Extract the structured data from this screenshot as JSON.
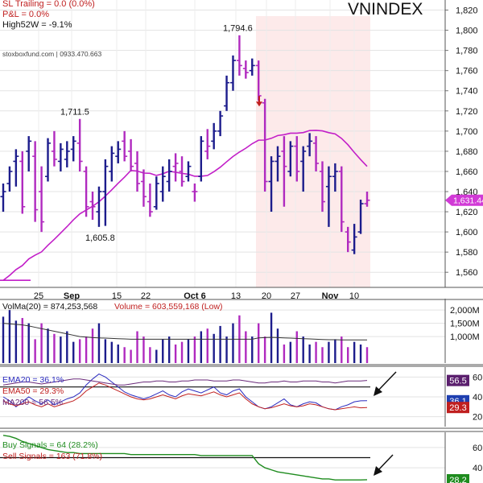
{
  "chart_data": [
    {
      "type": "ohlc",
      "title": "VNINDEX",
      "header_lines": [
        "SL Trailing = 0.0 (0.0%)",
        "P&L = 0.0%",
        "High52W = -9.1%"
      ],
      "watermark": "stoxboxfund.com | 0933.470.663",
      "x_tick_labels": [
        "25",
        "Sep",
        "15",
        "22",
        "Oct 6",
        "13",
        "20",
        "27",
        "Nov",
        "10"
      ],
      "y_ticks": [
        1560,
        1580,
        1600,
        1620,
        1640,
        1660,
        1680,
        1700,
        1720,
        1740,
        1760,
        1780,
        1800,
        1820
      ],
      "ylim": [
        1545,
        1830
      ],
      "last_price_label": "1,631.44",
      "last_price": 1631.44,
      "annotations": [
        {
          "text": "1,794.6",
          "value": 1794.6
        },
        {
          "text": "1,711.5",
          "value": 1711.5
        },
        {
          "text": "1,605.8",
          "value": 1605.8
        }
      ],
      "sell_arrow_value": 1730,
      "highlight": {
        "from_index": 50,
        "to_index": 72
      },
      "bars": [
        {
          "open": 1635,
          "high": 1648,
          "low": 1620,
          "close": 1640,
          "color": "#1c1c8c"
        },
        {
          "open": 1648,
          "high": 1665,
          "low": 1640,
          "close": 1660,
          "color": "#1c1c8c"
        },
        {
          "open": 1670,
          "high": 1682,
          "low": 1645,
          "close": 1675,
          "color": "#1c1c8c"
        },
        {
          "open": 1670,
          "high": 1680,
          "low": 1618,
          "close": 1625,
          "color": "#b02abf"
        },
        {
          "open": 1680,
          "high": 1695,
          "low": 1660,
          "close": 1690,
          "color": "#1c1c8c"
        },
        {
          "open": 1675,
          "high": 1690,
          "low": 1610,
          "close": 1622,
          "color": "#b02abf"
        },
        {
          "open": 1640,
          "high": 1665,
          "low": 1600,
          "close": 1610,
          "color": "#b02abf"
        },
        {
          "open": 1655,
          "high": 1693,
          "low": 1650,
          "close": 1688,
          "color": "#1c1c8c"
        },
        {
          "open": 1680,
          "high": 1700,
          "low": 1665,
          "close": 1672,
          "color": "#b02abf"
        },
        {
          "open": 1670,
          "high": 1688,
          "low": 1660,
          "close": 1682,
          "color": "#1c1c8c"
        },
        {
          "open": 1672,
          "high": 1690,
          "low": 1664,
          "close": 1680,
          "color": "#1c1c8c"
        },
        {
          "open": 1682,
          "high": 1695,
          "low": 1670,
          "close": 1690,
          "color": "#1c1c8c"
        },
        {
          "open": 1688,
          "high": 1712,
          "low": 1660,
          "close": 1670,
          "color": "#b02abf"
        },
        {
          "open": 1660,
          "high": 1665,
          "low": 1615,
          "close": 1625,
          "color": "#b02abf"
        },
        {
          "open": 1630,
          "high": 1640,
          "low": 1612,
          "close": 1625,
          "color": "#b02abf"
        },
        {
          "open": 1620,
          "high": 1645,
          "low": 1605,
          "close": 1640,
          "color": "#1c1c8c"
        },
        {
          "open": 1640,
          "high": 1672,
          "low": 1606,
          "close": 1665,
          "color": "#1c1c8c"
        },
        {
          "open": 1660,
          "high": 1685,
          "low": 1650,
          "close": 1678,
          "color": "#1c1c8c"
        },
        {
          "open": 1675,
          "high": 1690,
          "low": 1668,
          "close": 1682,
          "color": "#1c1c8c"
        },
        {
          "open": 1690,
          "high": 1700,
          "low": 1670,
          "close": 1675,
          "color": "#b02abf"
        },
        {
          "open": 1680,
          "high": 1692,
          "low": 1660,
          "close": 1665,
          "color": "#b02abf"
        },
        {
          "open": 1668,
          "high": 1680,
          "low": 1640,
          "close": 1648,
          "color": "#b02abf"
        },
        {
          "open": 1650,
          "high": 1662,
          "low": 1625,
          "close": 1635,
          "color": "#b02abf"
        },
        {
          "open": 1630,
          "high": 1648,
          "low": 1615,
          "close": 1620,
          "color": "#b02abf"
        },
        {
          "open": 1625,
          "high": 1655,
          "low": 1622,
          "close": 1648,
          "color": "#1c1c8c"
        },
        {
          "open": 1640,
          "high": 1665,
          "low": 1630,
          "close": 1655,
          "color": "#1c1c8c"
        },
        {
          "open": 1650,
          "high": 1672,
          "low": 1640,
          "close": 1660,
          "color": "#1c1c8c"
        },
        {
          "open": 1665,
          "high": 1678,
          "low": 1650,
          "close": 1668,
          "color": "#b02abf"
        },
        {
          "open": 1660,
          "high": 1675,
          "low": 1645,
          "close": 1650,
          "color": "#b02abf"
        },
        {
          "open": 1655,
          "high": 1670,
          "low": 1650,
          "close": 1665,
          "color": "#1c1c8c"
        },
        {
          "open": 1640,
          "high": 1648,
          "low": 1630,
          "close": 1640,
          "color": "#b02abf"
        },
        {
          "open": 1655,
          "high": 1695,
          "low": 1650,
          "close": 1690,
          "color": "#1c1c8c"
        },
        {
          "open": 1680,
          "high": 1702,
          "low": 1672,
          "close": 1685,
          "color": "#b02abf"
        },
        {
          "open": 1690,
          "high": 1708,
          "low": 1682,
          "close": 1700,
          "color": "#1c1c8c"
        },
        {
          "open": 1700,
          "high": 1720,
          "low": 1695,
          "close": 1715,
          "color": "#1c1c8c"
        },
        {
          "open": 1725,
          "high": 1755,
          "low": 1720,
          "close": 1748,
          "color": "#1c1c8c"
        },
        {
          "open": 1748,
          "high": 1775,
          "low": 1740,
          "close": 1770,
          "color": "#1c1c8c"
        },
        {
          "open": 1770,
          "high": 1795,
          "low": 1755,
          "close": 1765,
          "color": "#b02abf"
        },
        {
          "open": 1762,
          "high": 1770,
          "low": 1752,
          "close": 1758,
          "color": "#b02abf"
        },
        {
          "open": 1760,
          "high": 1772,
          "low": 1755,
          "close": 1765,
          "color": "#1c1c8c"
        },
        {
          "open": 1765,
          "high": 1770,
          "low": 1730,
          "close": 1735,
          "color": "#b02abf"
        },
        {
          "open": 1728,
          "high": 1732,
          "low": 1640,
          "close": 1650,
          "color": "#b02abf"
        },
        {
          "open": 1650,
          "high": 1675,
          "low": 1620,
          "close": 1670,
          "color": "#1c1c8c"
        },
        {
          "open": 1670,
          "high": 1685,
          "low": 1650,
          "close": 1675,
          "color": "#1c1c8c"
        },
        {
          "open": 1680,
          "high": 1695,
          "low": 1625,
          "close": 1665,
          "color": "#b02abf"
        },
        {
          "open": 1660,
          "high": 1690,
          "low": 1655,
          "close": 1685,
          "color": "#1c1c8c"
        },
        {
          "open": 1685,
          "high": 1695,
          "low": 1650,
          "close": 1660,
          "color": "#b02abf"
        },
        {
          "open": 1670,
          "high": 1685,
          "low": 1640,
          "close": 1680,
          "color": "#1c1c8c"
        },
        {
          "open": 1685,
          "high": 1698,
          "low": 1675,
          "close": 1690,
          "color": "#1c1c8c"
        },
        {
          "open": 1688,
          "high": 1695,
          "low": 1660,
          "close": 1668,
          "color": "#b02abf"
        },
        {
          "open": 1660,
          "high": 1670,
          "low": 1620,
          "close": 1630,
          "color": "#b02abf"
        },
        {
          "open": 1645,
          "high": 1665,
          "low": 1605,
          "close": 1655,
          "color": "#1c1c8c"
        },
        {
          "open": 1655,
          "high": 1668,
          "low": 1640,
          "close": 1660,
          "color": "#1c1c8c"
        },
        {
          "open": 1660,
          "high": 1665,
          "low": 1600,
          "close": 1610,
          "color": "#b02abf"
        },
        {
          "open": 1600,
          "high": 1605,
          "low": 1580,
          "close": 1590,
          "color": "#b02abf"
        },
        {
          "open": 1582,
          "high": 1608,
          "low": 1578,
          "close": 1595,
          "color": "#1c1c8c"
        },
        {
          "open": 1600,
          "high": 1632,
          "low": 1598,
          "close": 1628,
          "color": "#1c1c8c"
        },
        {
          "open": 1628,
          "high": 1640,
          "low": 1625,
          "close": 1631.44,
          "color": "#b02abf"
        }
      ],
      "ma_line": {
        "color": "#c21fc8"
      }
    },
    {
      "type": "bar",
      "title": "VolMa(20) = 874,253,568",
      "subtitle": "Volume = 603,559,168 (Low)",
      "y_ticks": [
        1000,
        1500,
        2000
      ],
      "y_tick_labels": [
        "1,000M",
        "1,500M",
        "2,000M"
      ],
      "ylim": [
        0,
        2400
      ],
      "volume_m": [
        1750,
        2000,
        1600,
        1700,
        1500,
        900,
        1500,
        1300,
        1100,
        1000,
        1200,
        800,
        900,
        1000,
        1300,
        1500,
        900,
        800,
        700,
        600,
        500,
        1200,
        1000,
        600,
        500,
        900,
        1000,
        700,
        800,
        900,
        1000,
        1200,
        1300,
        1100,
        1400,
        1000,
        1500,
        1800,
        1200,
        1000,
        1500,
        1000,
        1900,
        1300,
        700,
        800,
        1200,
        1000,
        700,
        800,
        600,
        800,
        900,
        1000,
        600,
        800,
        700,
        600
      ],
      "volume_colors_note": "blue/magenta per bar",
      "volma_line": [
        1500,
        1480,
        1460,
        1440,
        1400,
        1350,
        1300,
        1250,
        1200,
        1150,
        1100,
        1050,
        1000,
        980,
        960,
        950,
        940,
        930,
        920,
        910,
        900,
        900,
        900,
        900,
        900,
        900,
        900,
        900,
        900,
        900,
        900,
        900,
        900,
        900,
        900,
        900,
        900,
        900,
        900,
        900,
        950,
        960,
        970,
        960,
        950,
        940,
        930,
        920,
        910,
        900,
        890,
        880,
        880,
        875,
        875,
        874,
        874,
        874
      ]
    },
    {
      "type": "line",
      "legend": [
        "EMA20 = 36.1%",
        "EMA50 = 29.3%",
        "MA200 = 56.5%"
      ],
      "y_ticks": [
        20,
        40,
        60
      ],
      "ylim": [
        10,
        70
      ],
      "reference_line": 50,
      "value_badges": [
        {
          "text": "56.5",
          "value": 56.5,
          "color": "#5b1f6e"
        },
        {
          "text": "36.1",
          "value": 36.1,
          "color": "#1f3fb0"
        },
        {
          "text": "29.3",
          "value": 29.3,
          "color": "#c01f1f"
        }
      ],
      "series": [
        {
          "name": "EMA20 = 36.1%",
          "color": "#2b2bbf",
          "values": [
            40,
            36,
            30,
            35,
            40,
            36,
            33,
            37,
            32,
            35,
            38,
            40,
            44,
            52,
            58,
            63,
            60,
            55,
            50,
            45,
            42,
            40,
            38,
            40,
            43,
            46,
            42,
            40,
            45,
            48,
            46,
            44,
            47,
            50,
            44,
            42,
            46,
            48,
            40,
            35,
            30,
            28,
            30,
            34,
            38,
            32,
            30,
            33,
            35,
            34,
            30,
            28,
            27,
            30,
            32,
            35,
            36,
            36.1
          ]
        },
        {
          "name": "EMA50 = 29.3%",
          "color": "#c02020",
          "values": [
            36,
            33,
            31,
            33,
            35,
            32,
            30,
            33,
            30,
            32,
            34,
            36,
            40,
            46,
            50,
            54,
            52,
            49,
            46,
            43,
            40,
            38,
            37,
            38,
            40,
            42,
            40,
            38,
            41,
            43,
            42,
            41,
            43,
            45,
            42,
            40,
            42,
            44,
            38,
            33,
            30,
            28,
            29,
            31,
            33,
            31,
            30,
            31,
            33,
            32,
            30,
            28,
            27,
            28,
            29,
            30,
            29,
            29.3
          ]
        },
        {
          "name": "MA200 = 56.5%",
          "color": "#6a2a7a",
          "values": [
            52,
            53,
            54,
            55,
            55,
            54,
            53,
            54,
            55,
            56,
            57,
            58,
            58,
            57,
            56,
            55,
            54,
            53,
            52,
            52,
            53,
            54,
            55,
            55,
            56,
            56,
            55,
            55,
            56,
            56,
            57,
            57,
            57,
            56,
            56,
            56,
            57,
            57,
            56,
            55,
            54,
            54,
            55,
            55,
            56,
            55,
            55,
            56,
            56,
            56,
            55,
            55,
            54,
            55,
            56,
            56,
            56,
            56.5
          ]
        }
      ]
    },
    {
      "type": "line",
      "legend": [
        "Buy Signals = 64 (28.2%)",
        "Sell Signals = 163 (71.8%)"
      ],
      "legend_colors": [
        "#1f8c1f",
        "#c01f1f"
      ],
      "y_ticks": [
        40,
        60
      ],
      "ylim": [
        25,
        75
      ],
      "reference_line": 50,
      "value_badges": [
        {
          "text": "28.2",
          "value": 28.2,
          "color": "#1f8c1f"
        }
      ],
      "series": [
        {
          "name": "Buy Signals = 64 (28.2%)",
          "color": "#1f8c1f",
          "values": [
            72,
            71,
            69,
            66,
            64,
            62,
            60,
            58,
            57,
            56,
            55,
            55,
            54,
            54,
            54,
            54,
            54,
            54,
            54,
            54,
            53,
            53,
            53,
            53,
            53,
            53,
            53,
            53,
            53,
            53,
            53,
            52,
            52,
            52,
            52,
            52,
            52,
            52,
            52,
            52,
            44,
            40,
            38,
            36,
            35,
            34,
            33,
            32,
            31,
            30,
            29,
            29,
            28,
            28,
            28,
            28,
            28,
            28.2
          ]
        }
      ]
    }
  ]
}
